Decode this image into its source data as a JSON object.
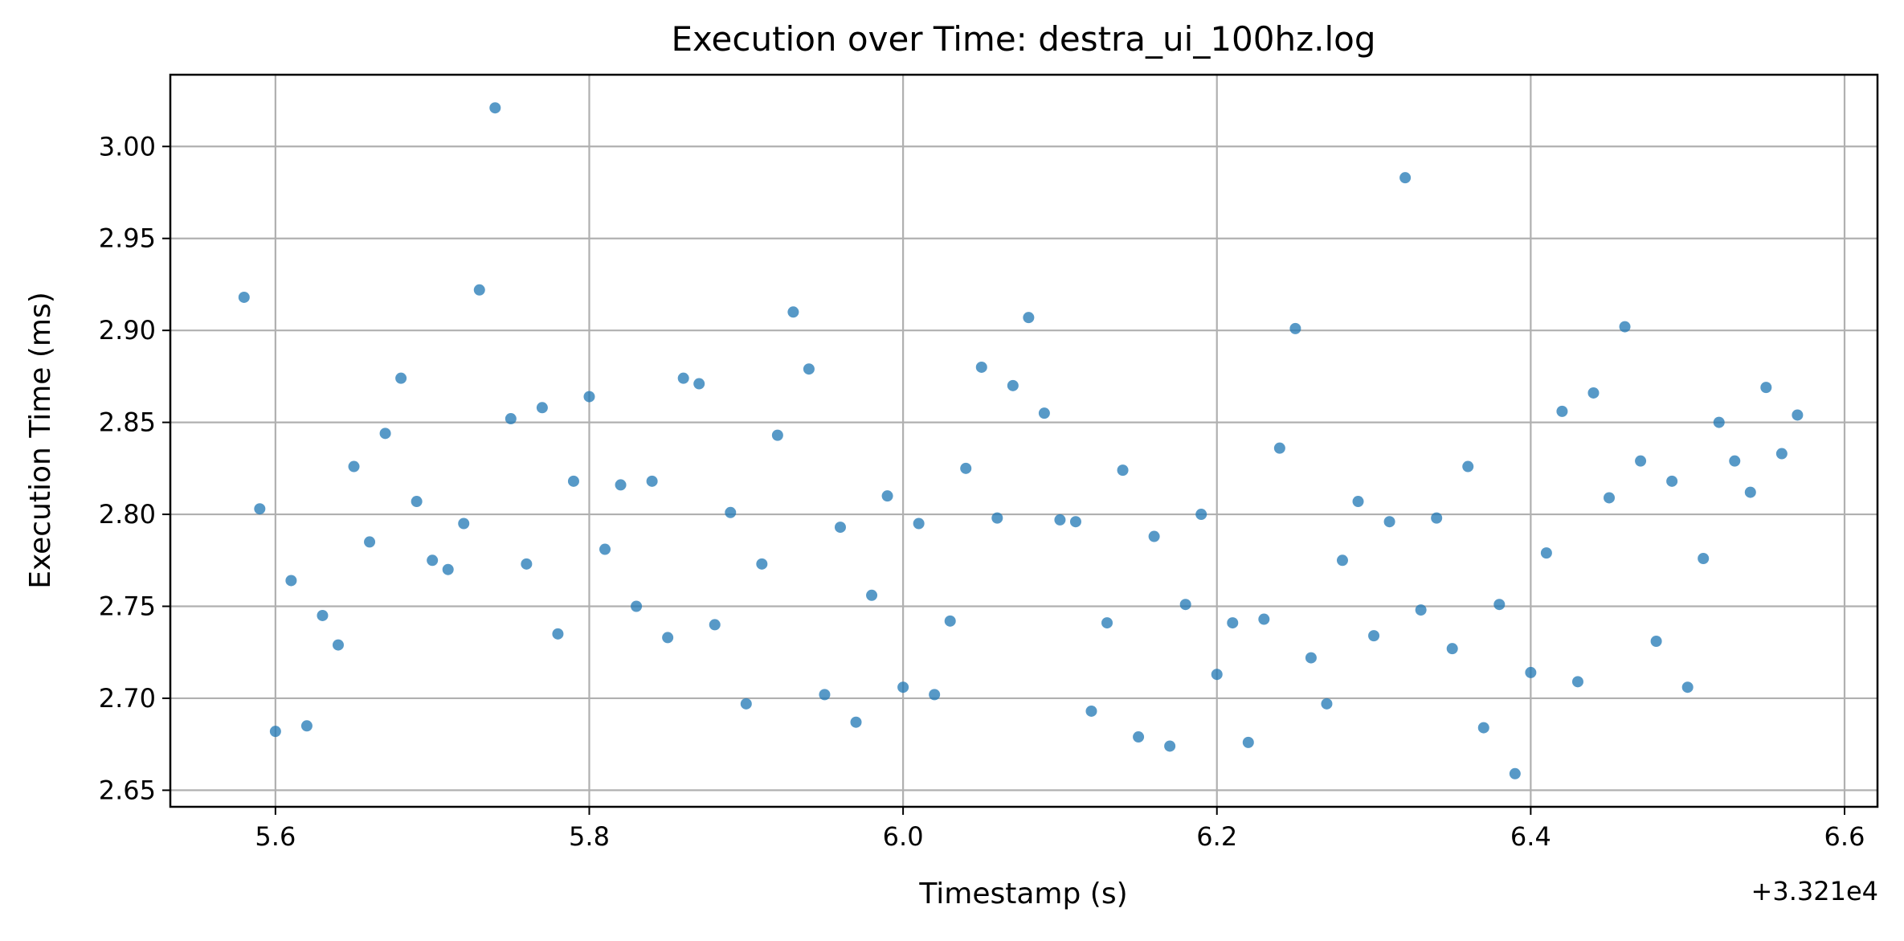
{
  "chart_data": {
    "type": "scatter",
    "title": "Execution over Time: destra_ui_100hz.log",
    "xlabel": "Timestamp (s)",
    "ylabel": "Execution Time (ms)",
    "x_offset_label": "+3.321e4",
    "x_offset": 33210,
    "xlim": [
      5.533,
      6.621
    ],
    "ylim": [
      2.641,
      3.039
    ],
    "x_ticks": [
      5.6,
      5.8,
      6.0,
      6.2,
      6.4,
      6.6
    ],
    "x_tick_labels": [
      "5.6",
      "5.8",
      "6.0",
      "6.2",
      "6.4",
      "6.6"
    ],
    "y_ticks": [
      2.65,
      2.7,
      2.75,
      2.8,
      2.85,
      2.9,
      2.95,
      3.0
    ],
    "y_tick_labels": [
      "2.65",
      "2.70",
      "2.75",
      "2.80",
      "2.85",
      "2.90",
      "2.95",
      "3.00"
    ],
    "grid": true,
    "marker_color": "#1f77b4",
    "marker_opacity": 0.75,
    "series": [
      {
        "x": [
          5.58,
          5.59,
          5.6,
          5.61,
          5.62,
          5.63,
          5.64,
          5.65,
          5.66,
          5.67,
          5.68,
          5.69,
          5.7,
          5.71,
          5.72,
          5.73,
          5.74,
          5.75,
          5.76,
          5.77,
          5.78,
          5.79,
          5.8,
          5.81,
          5.82,
          5.83,
          5.84,
          5.85,
          5.86,
          5.87,
          5.88,
          5.89,
          5.9,
          5.91,
          5.92,
          5.93,
          5.94,
          5.95,
          5.96,
          5.97,
          5.98,
          5.99,
          6.0,
          6.01,
          6.02,
          6.03,
          6.04,
          6.05,
          6.06,
          6.07,
          6.08,
          6.09,
          6.1,
          6.11,
          6.12,
          6.13,
          6.14,
          6.15,
          6.16,
          6.17,
          6.18,
          6.19,
          6.2,
          6.21,
          6.22,
          6.23,
          6.24,
          6.25,
          6.26,
          6.27,
          6.28,
          6.29,
          6.3,
          6.31,
          6.32,
          6.33,
          6.34,
          6.35,
          6.36,
          6.37,
          6.38,
          6.39,
          6.4,
          6.41,
          6.42,
          6.43,
          6.44,
          6.45,
          6.46,
          6.47,
          6.48,
          6.49,
          6.5,
          6.51,
          6.52,
          6.53,
          6.54,
          6.55,
          6.56,
          6.57
        ],
        "y": [
          2.918,
          2.803,
          2.682,
          2.764,
          2.685,
          2.745,
          2.729,
          2.826,
          2.785,
          2.844,
          2.874,
          2.807,
          2.775,
          2.77,
          2.795,
          2.922,
          3.021,
          2.852,
          2.773,
          2.858,
          2.735,
          2.818,
          2.864,
          2.781,
          2.816,
          2.75,
          2.818,
          2.733,
          2.874,
          2.871,
          2.74,
          2.801,
          2.697,
          2.773,
          2.843,
          2.91,
          2.879,
          2.702,
          2.793,
          2.687,
          2.756,
          2.81,
          2.706,
          2.795,
          2.702,
          2.742,
          2.825,
          2.88,
          2.798,
          2.87,
          2.907,
          2.855,
          2.797,
          2.796,
          2.693,
          2.741,
          2.824,
          2.679,
          2.788,
          2.674,
          2.751,
          2.8,
          2.713,
          2.741,
          2.676,
          2.743,
          2.836,
          2.901,
          2.722,
          2.697,
          2.775,
          2.807,
          2.734,
          2.796,
          2.983,
          2.748,
          2.798,
          2.727,
          2.826,
          2.684,
          2.751,
          2.659,
          2.714,
          2.779,
          2.856,
          2.709,
          2.866,
          2.809,
          2.902,
          2.829,
          2.731,
          2.818,
          2.706,
          2.776,
          2.85,
          2.829,
          2.812,
          2.869,
          2.833,
          2.854
        ]
      }
    ]
  }
}
